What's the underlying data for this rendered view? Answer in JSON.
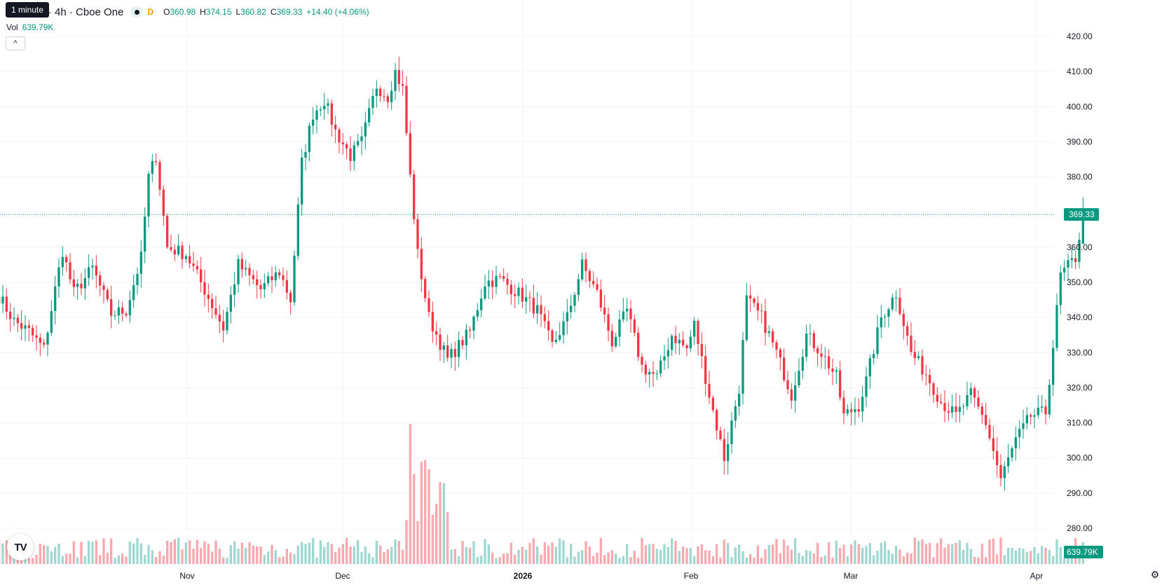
{
  "legend": {
    "symbol": "com Inc. · 4h · Cboe One",
    "interval_badge": "D",
    "o_label": "O",
    "o": "360.98",
    "h_label": "H",
    "h": "374.15",
    "l_label": "L",
    "l": "360.82",
    "c_label": "C",
    "c": "369.33",
    "change": "+14.40 (+4.06%)",
    "tooltip": "1 minute"
  },
  "volume": {
    "label": "Vol",
    "value": "639.79K"
  },
  "colors": {
    "up": "#089981",
    "down": "#f23645",
    "up_vol": "#9ed8d1",
    "down_vol": "#f7a9ae",
    "grid": "#f0f3fa"
  },
  "icons": {
    "logo": "tradingview-logo-icon",
    "settings": "gear-icon",
    "collapse": "chevron-up-icon"
  },
  "chart_data": {
    "type": "candlestick",
    "title": "com Inc. · 4h · Cboe One",
    "ylim": [
      282,
      424
    ],
    "y_ticks": [
      "420.00",
      "410.00",
      "400.00",
      "390.00",
      "380.00",
      "370.00",
      "360.00",
      "350.00",
      "340.00",
      "330.00",
      "320.00",
      "310.00",
      "300.00",
      "290.00",
      "280.00"
    ],
    "x_ticks": [
      "Nov",
      "Dec",
      "2026",
      "Feb",
      "Mar",
      "Apr"
    ],
    "last_price_label": "369.33",
    "last_price": 369.33,
    "volume_label": "639.79K",
    "waypoints": [
      [
        0,
        346
      ],
      [
        4,
        339
      ],
      [
        8,
        336
      ],
      [
        12,
        331
      ],
      [
        15,
        348
      ],
      [
        17,
        359
      ],
      [
        20,
        347
      ],
      [
        25,
        354
      ],
      [
        30,
        341
      ],
      [
        34,
        342
      ],
      [
        38,
        357
      ],
      [
        40,
        380
      ],
      [
        42,
        386
      ],
      [
        45,
        360
      ],
      [
        50,
        358
      ],
      [
        54,
        350
      ],
      [
        60,
        337
      ],
      [
        64,
        355
      ],
      [
        70,
        348
      ],
      [
        75,
        353
      ],
      [
        78,
        345
      ],
      [
        81,
        384
      ],
      [
        84,
        398
      ],
      [
        87,
        402
      ],
      [
        90,
        393
      ],
      [
        94,
        386
      ],
      [
        97,
        390
      ],
      [
        101,
        406
      ],
      [
        104,
        403
      ],
      [
        106,
        410
      ],
      [
        108,
        405
      ],
      [
        110,
        380
      ],
      [
        112,
        358
      ],
      [
        115,
        340
      ],
      [
        120,
        328
      ],
      [
        126,
        336
      ],
      [
        130,
        350
      ],
      [
        134,
        351
      ],
      [
        140,
        346
      ],
      [
        144,
        342
      ],
      [
        148,
        332
      ],
      [
        152,
        340
      ],
      [
        156,
        355
      ],
      [
        160,
        347
      ],
      [
        164,
        333
      ],
      [
        168,
        342
      ],
      [
        172,
        326
      ],
      [
        176,
        323
      ],
      [
        180,
        335
      ],
      [
        184,
        331
      ],
      [
        186,
        338
      ],
      [
        190,
        318
      ],
      [
        194,
        300
      ],
      [
        198,
        320
      ],
      [
        200,
        345
      ],
      [
        204,
        340
      ],
      [
        208,
        330
      ],
      [
        212,
        318
      ],
      [
        216,
        335
      ],
      [
        220,
        330
      ],
      [
        224,
        323
      ],
      [
        226,
        312
      ],
      [
        230,
        315
      ],
      [
        232,
        322
      ],
      [
        236,
        340
      ],
      [
        240,
        347
      ],
      [
        244,
        330
      ],
      [
        248,
        324
      ],
      [
        252,
        316
      ],
      [
        256,
        312
      ],
      [
        260,
        318
      ],
      [
        264,
        310
      ],
      [
        266,
        302
      ],
      [
        268,
        294
      ],
      [
        272,
        305
      ],
      [
        276,
        312
      ],
      [
        280,
        313
      ],
      [
        282,
        332
      ],
      [
        284,
        352
      ],
      [
        288,
        357
      ],
      [
        290,
        369.33
      ]
    ]
  }
}
